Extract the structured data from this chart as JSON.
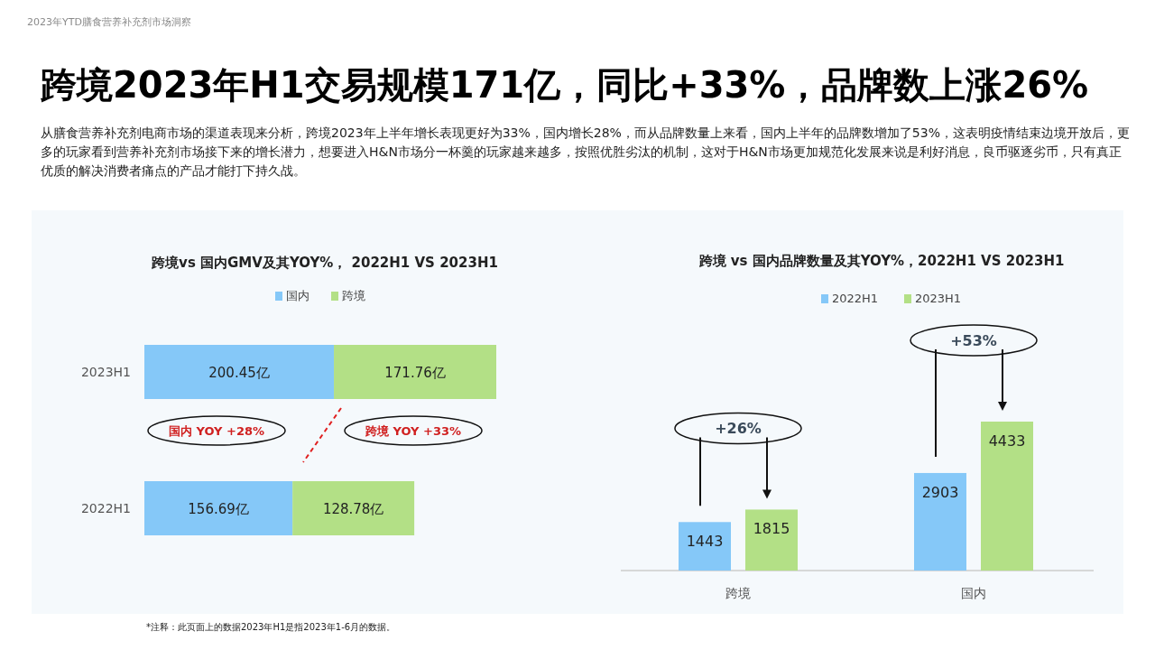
{
  "chart_data": [
    {
      "type": "other",
      "title": "跨境2023年H1交易规模171亿，同比+33%，品牌数上涨26%",
      "subtitle": "从膳食营养补充剂电商市场的渠道表现来分析，跨境2023年上半年增长表现更好为33%，国内增长28%，而从品牌数量上来看，国内上半年的品牌数增加了53%，这表明疫情结束边境开放后，更多的玩家看到营养补充剂市场接下来的增长潜力，想要进入H&N市场分一杯羹的玩家越来越多，按照优胜劣汰的机制，这对于H&N市场更加规范化发展来说是利好消息，良币驱逐劣币，只有真正优质的解决消费者痛点的产品才能打下持久战。",
      "annotations": [
        "2023年YTD膳食营养补充剂市场洞察",
        "*注释：此页面上的数据2023年H1是指2023年1-6月的数据。"
      ]
    },
    {
      "type": "bar",
      "orientation": "horizontal",
      "stacked": true,
      "title": "跨境vs 国内GMV及其YOY%， 2022H1 VS 2023H1",
      "categories": [
        "2023H1",
        "2022H1"
      ],
      "series": [
        {
          "name": "国内",
          "color": "#85c8f8",
          "values": [
            200.45,
            156.69
          ],
          "value_labels": [
            "200.45亿",
            "156.69亿"
          ]
        },
        {
          "name": "跨境",
          "color": "#b3e086",
          "values": [
            171.76,
            128.78
          ],
          "value_labels": [
            "171.76亿",
            "128.78亿"
          ]
        }
      ],
      "legend": "top",
      "tick_labels": "y",
      "annotations": [
        "国内 YOY +28%",
        "跨境 YOY +33%"
      ]
    },
    {
      "type": "bar",
      "title": "跨境 vs 国内品牌数量及其YOY%，2022H1 VS 2023H1",
      "categories": [
        "跨境",
        "国内"
      ],
      "series": [
        {
          "name": "2022H1",
          "color": "#85c8f8",
          "values": [
            1443,
            2903
          ]
        },
        {
          "name": "2023H1",
          "color": "#b3e086",
          "values": [
            1815,
            4433
          ]
        }
      ],
      "legend": "top",
      "tick_labels": "x",
      "data_labels": true,
      "annotations": [
        "+26%",
        "+53%"
      ]
    }
  ]
}
